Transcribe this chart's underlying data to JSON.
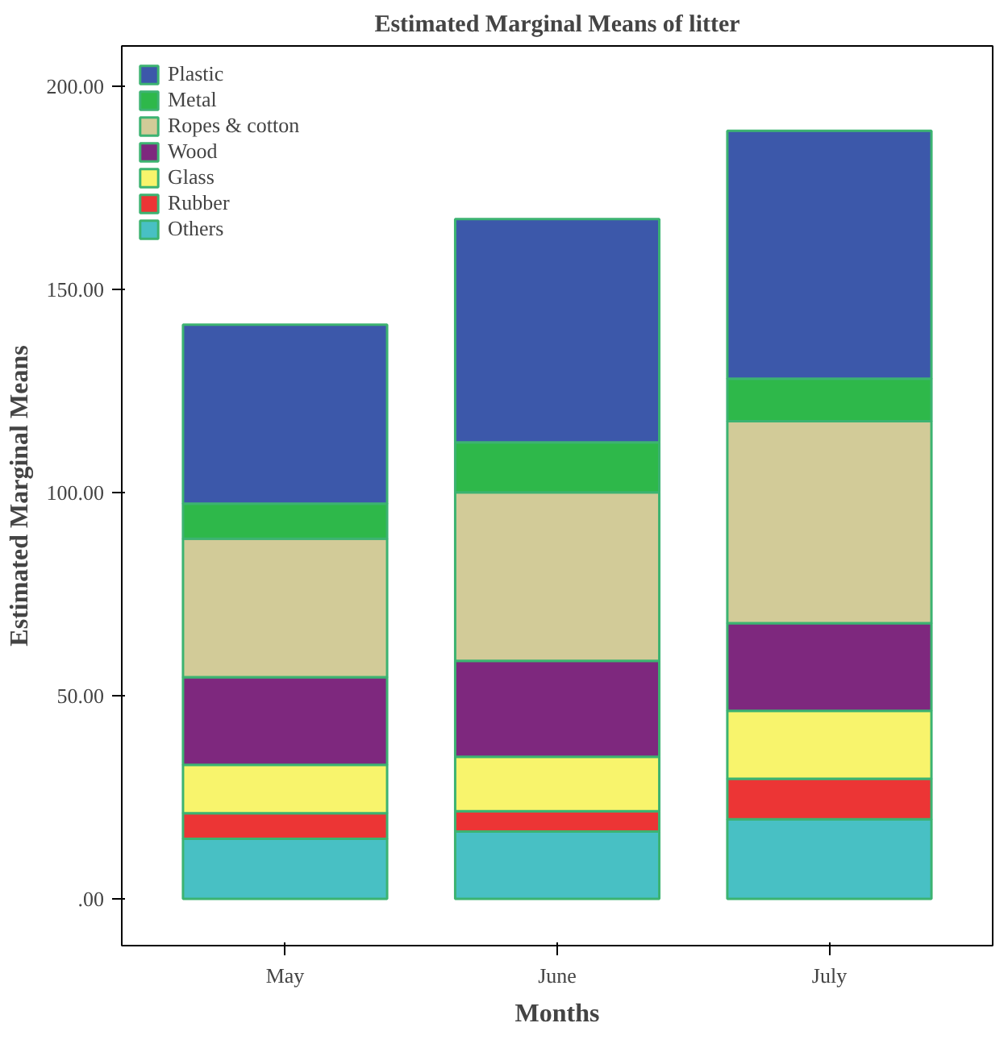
{
  "chart_data": {
    "type": "bar",
    "title": "Estimated Marginal Means of litter",
    "xlabel": "Months",
    "ylabel": "Estimated Marginal Means",
    "categories": [
      "May",
      "June",
      "July"
    ],
    "stacked": true,
    "legend": "top left",
    "grid": false,
    "ylim": [
      -11.5,
      210
    ],
    "yticks": [
      {
        "value": 0,
        "label": ".00"
      },
      {
        "value": 50,
        "label": "50.00"
      },
      {
        "value": 100,
        "label": "100.00"
      },
      {
        "value": 150,
        "label": "150.00"
      },
      {
        "value": 200,
        "label": "200.00"
      }
    ],
    "series": [
      {
        "name": "Others",
        "color": "#48c0c4",
        "values": [
          14.8,
          16.6,
          19.6
        ]
      },
      {
        "name": "Rubber",
        "color": "#ec3535",
        "values": [
          6.3,
          5.0,
          10.0
        ]
      },
      {
        "name": "Glass",
        "color": "#f8f46c",
        "values": [
          11.9,
          13.4,
          16.7
        ]
      },
      {
        "name": "Wood",
        "color": "#7e287e",
        "values": [
          21.6,
          23.6,
          21.6
        ]
      },
      {
        "name": "Ropes & cotton",
        "color": "#d2cb98",
        "values": [
          34.1,
          41.5,
          49.7
        ]
      },
      {
        "name": "Metal",
        "color": "#2eb84a",
        "values": [
          8.6,
          12.3,
          10.5
        ]
      },
      {
        "name": "Plastic",
        "color": "#3c58aa",
        "values": [
          44.1,
          55.0,
          61.0
        ]
      }
    ]
  }
}
